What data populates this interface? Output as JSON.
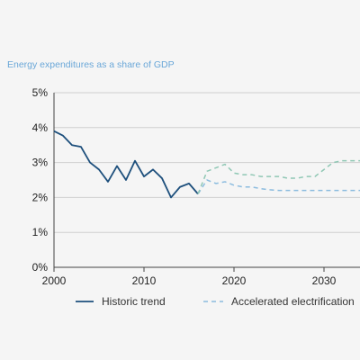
{
  "chart_data": {
    "type": "line",
    "title": "Energy expenditures as a share of GDP",
    "xlabel": "",
    "ylabel": "",
    "xlim": [
      2000,
      2034
    ],
    "ylim": [
      0,
      5
    ],
    "x_ticks": [
      2000,
      2010,
      2020,
      2030
    ],
    "x_tick_labels": [
      "2000",
      "2010",
      "2020",
      "2030"
    ],
    "y_ticks": [
      0,
      1,
      2,
      3,
      4,
      5
    ],
    "y_tick_labels": [
      "0%",
      "1%",
      "2%",
      "3%",
      "4%",
      "5%"
    ],
    "grid": "horizontal",
    "legend_position": "bottom",
    "series": [
      {
        "name": "Historic trend",
        "style": "solid",
        "color": "#1d4f7c",
        "x": [
          2000,
          2001,
          2002,
          2003,
          2004,
          2005,
          2006,
          2007,
          2008,
          2009,
          2010,
          2011,
          2012,
          2013,
          2014,
          2015,
          2016
        ],
        "y": [
          3.9,
          3.77,
          3.5,
          3.45,
          3.0,
          2.8,
          2.45,
          2.9,
          2.5,
          3.05,
          2.6,
          2.8,
          2.55,
          2.0,
          2.3,
          2.4,
          2.1
        ]
      },
      {
        "name": "Accelerated electrification",
        "style": "dashed",
        "color": "#8cbcdf",
        "x": [
          2016,
          2017,
          2018,
          2019,
          2020,
          2021,
          2022,
          2023,
          2024,
          2025,
          2026,
          2027,
          2028,
          2029,
          2030,
          2031,
          2032,
          2033,
          2034
        ],
        "y": [
          2.1,
          2.5,
          2.4,
          2.45,
          2.35,
          2.3,
          2.3,
          2.25,
          2.22,
          2.2,
          2.2,
          2.2,
          2.2,
          2.2,
          2.2,
          2.2,
          2.2,
          2.2,
          2.2
        ]
      },
      {
        "name": "",
        "style": "dashed",
        "color": "#8fc7b4",
        "x": [
          2016,
          2017,
          2018,
          2019,
          2020,
          2021,
          2022,
          2023,
          2024,
          2025,
          2026,
          2027,
          2028,
          2029,
          2030,
          2031,
          2032,
          2033,
          2034
        ],
        "y": [
          2.1,
          2.75,
          2.85,
          2.95,
          2.7,
          2.65,
          2.65,
          2.6,
          2.6,
          2.6,
          2.55,
          2.55,
          2.6,
          2.6,
          2.8,
          3.0,
          3.05,
          3.05,
          3.05
        ]
      }
    ]
  }
}
